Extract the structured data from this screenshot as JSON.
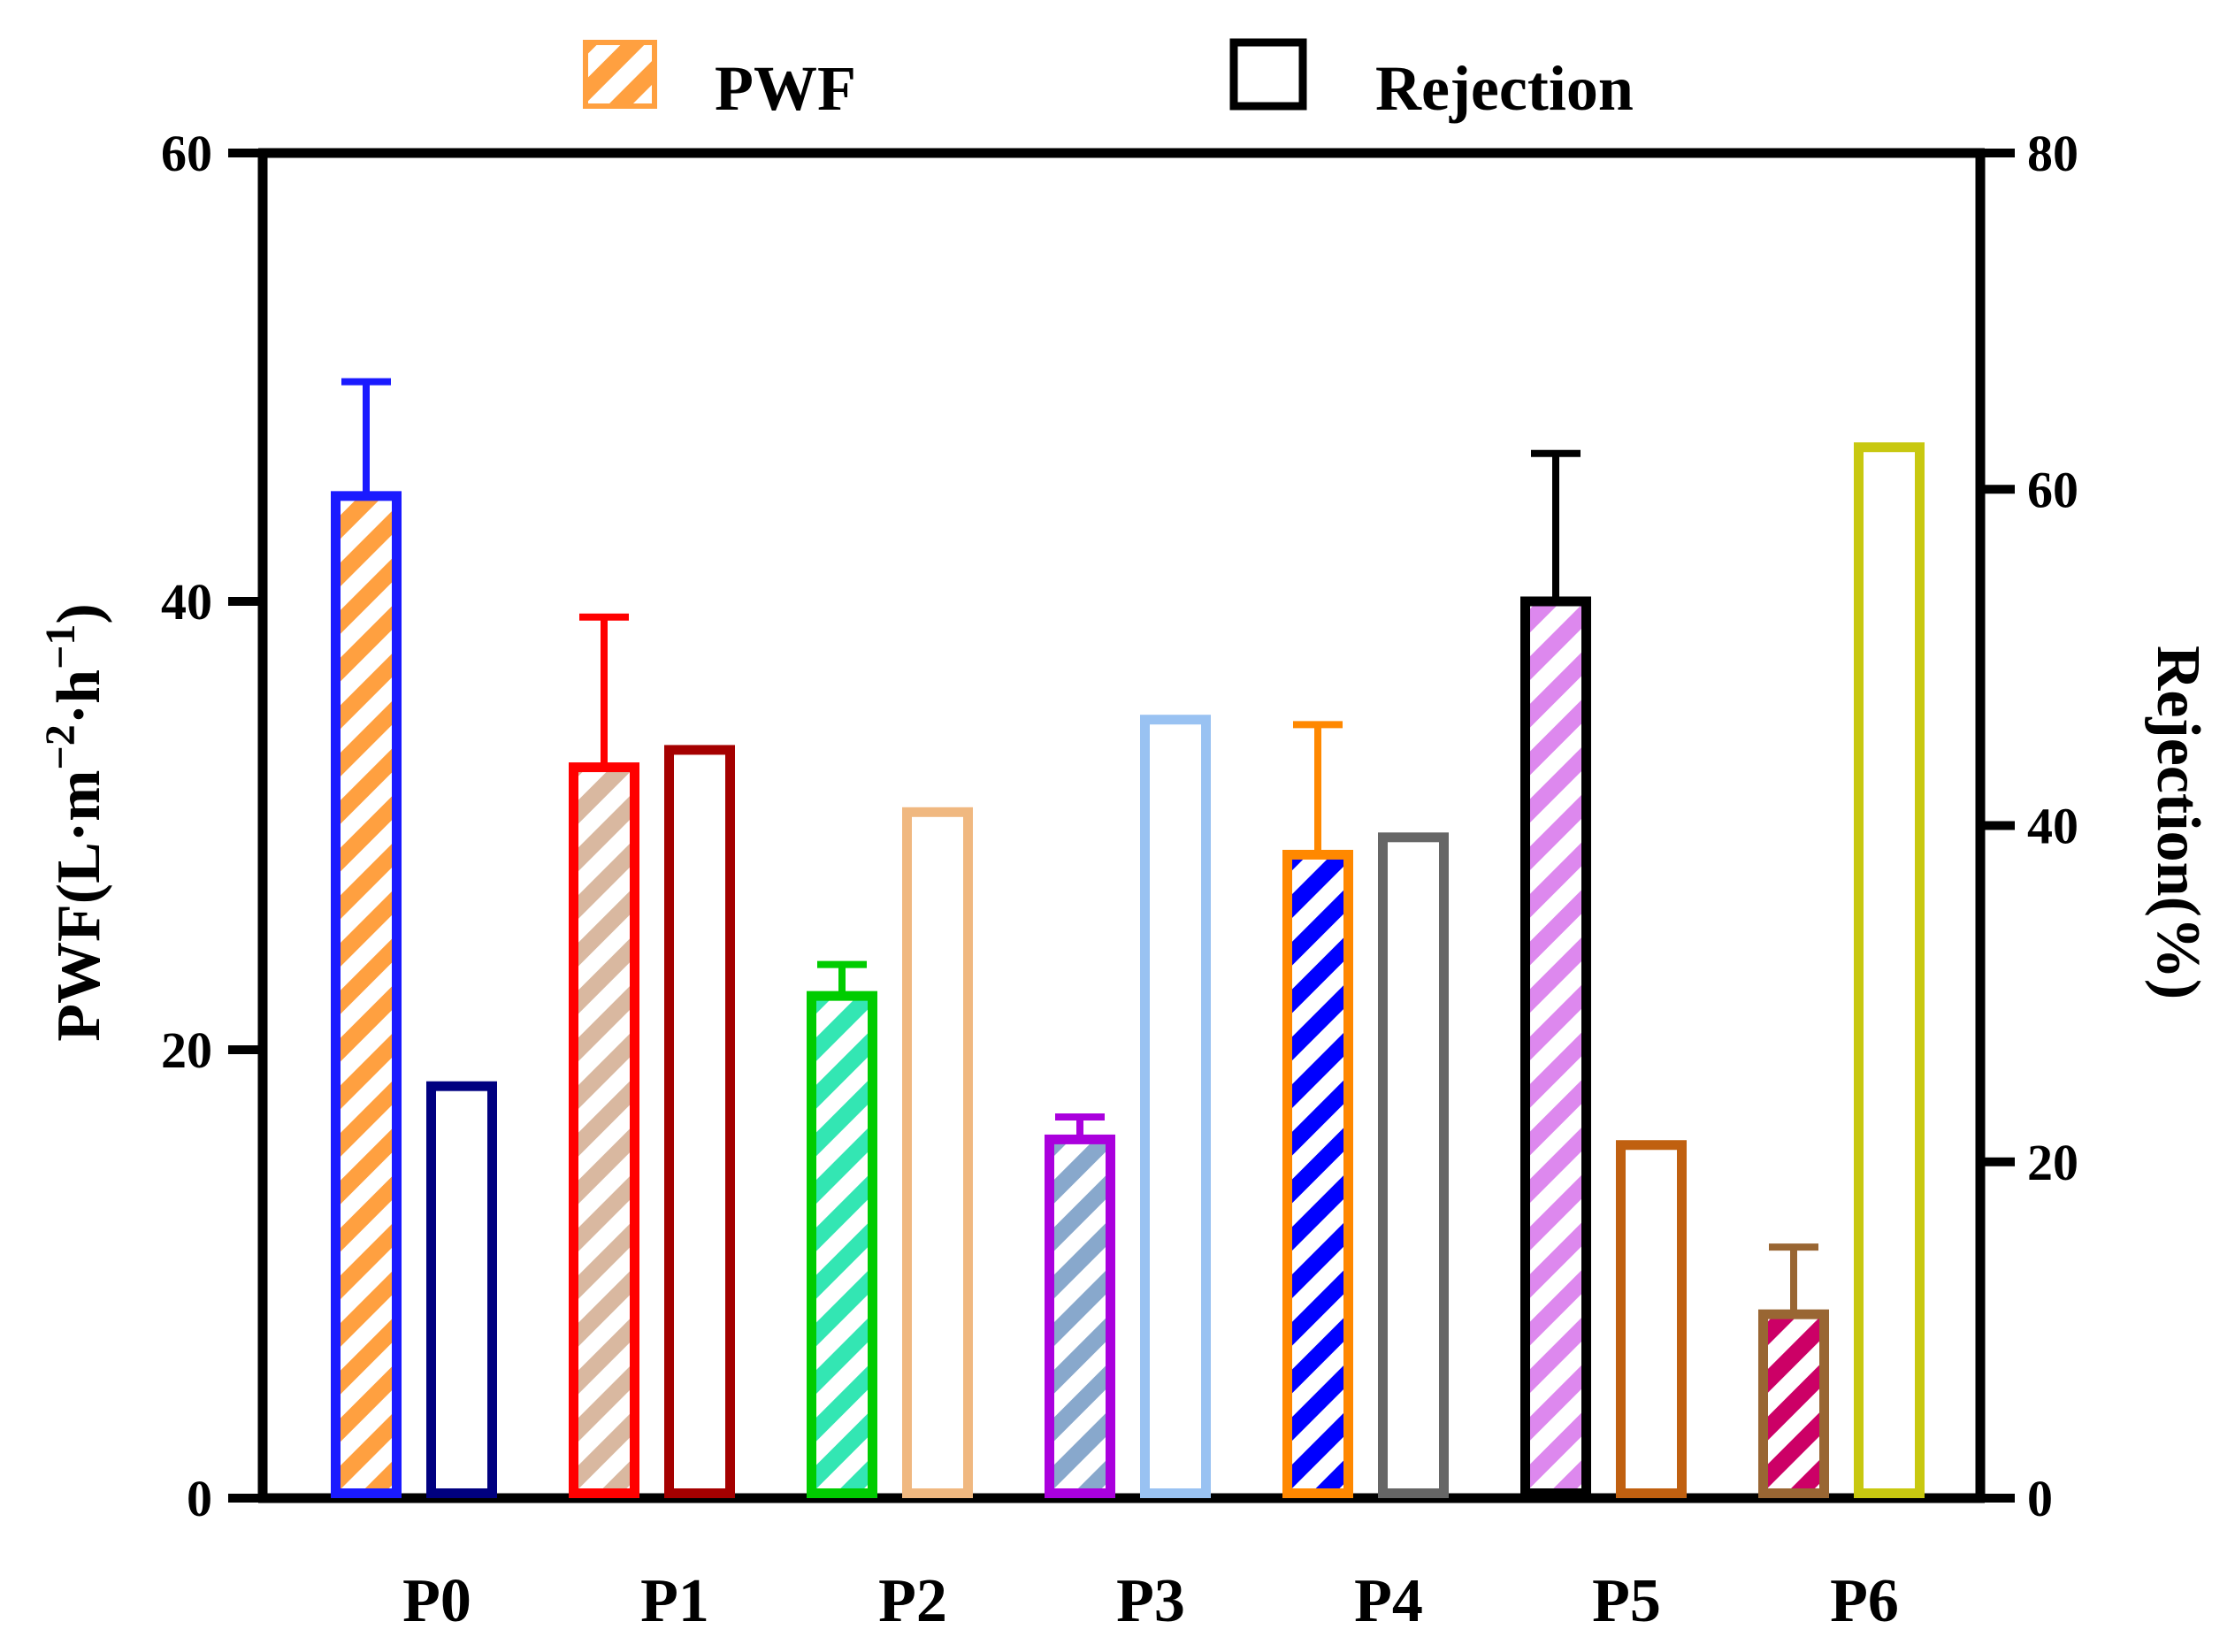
{
  "chart_data": {
    "type": "bar",
    "categories": [
      "P0",
      "P1",
      "P2",
      "P3",
      "P4",
      "P5",
      "P6"
    ],
    "series": [
      {
        "name": "PWF",
        "axis": "left",
        "values": [
          44.7,
          32.6,
          22.4,
          16.0,
          28.7,
          40.0,
          8.2
        ],
        "errors": [
          5.1,
          6.7,
          1.4,
          1.0,
          5.8,
          6.6,
          3.0
        ],
        "stroke_colors": [
          "#1a1aff",
          "#ff0000",
          "#00cc00",
          "#aa00dd",
          "#ff8800",
          "#000000",
          "#996633"
        ],
        "hatch_colors": [
          "#ffa040",
          "#d9b8a0",
          "#33e6b3",
          "#88a8cc",
          "#0000ff",
          "#dd88ee",
          "#cc0066"
        ]
      },
      {
        "name": "Rejection",
        "axis": "right",
        "values": [
          24.5,
          44.5,
          40.8,
          46.3,
          39.3,
          21.0,
          62.5
        ],
        "stroke_colors": [
          "#000080",
          "#a50000",
          "#f0b880",
          "#99c2f2",
          "#666666",
          "#c06010",
          "#c8c810"
        ]
      }
    ],
    "title": "",
    "xlabel": "",
    "ylabel": "PWF(L·m",
    "ylabel_sup1": "−2",
    "ylabel_mid": "·h",
    "ylabel_sup2": "−1",
    "ylabel_end": ")",
    "y2label": "Rejection(%)",
    "ylim": [
      0,
      60
    ],
    "y2lim": [
      0,
      80
    ],
    "yticks": [
      "0",
      "20",
      "40",
      "60"
    ],
    "y2ticks": [
      "0",
      "20",
      "40",
      "60",
      "80"
    ],
    "legend": [
      {
        "label": "PWF",
        "color": "#ffa040",
        "style": "hatched"
      },
      {
        "label": "Rejection",
        "color": "#000000",
        "style": "open"
      }
    ],
    "legend_position": "top"
  }
}
